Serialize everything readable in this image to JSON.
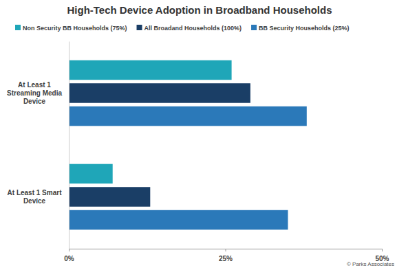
{
  "chart_data": {
    "type": "bar",
    "orientation": "horizontal",
    "title": "High-Tech Device Adoption in Broadband Households",
    "source": "© Parks Associates",
    "categories": [
      "At Least 1 Streaming Media Device",
      "At Least 1 Smart Device"
    ],
    "series": [
      {
        "name": "Non Security BB Households (75%)",
        "color": "#1fa6b8",
        "values": [
          26,
          7
        ]
      },
      {
        "name": "All Broadand Households (100%)",
        "color": "#1a3e66",
        "values": [
          29,
          13
        ]
      },
      {
        "name": "BB Security Households (25%)",
        "color": "#2b79b9",
        "values": [
          38,
          35
        ]
      }
    ],
    "xlim": [
      0,
      50
    ],
    "xticks": [
      {
        "value": 0,
        "label": "0%"
      },
      {
        "value": 25,
        "label": "25%"
      },
      {
        "value": 50,
        "label": "50%"
      }
    ],
    "grid": false,
    "legend": "top",
    "data_labels": false
  }
}
